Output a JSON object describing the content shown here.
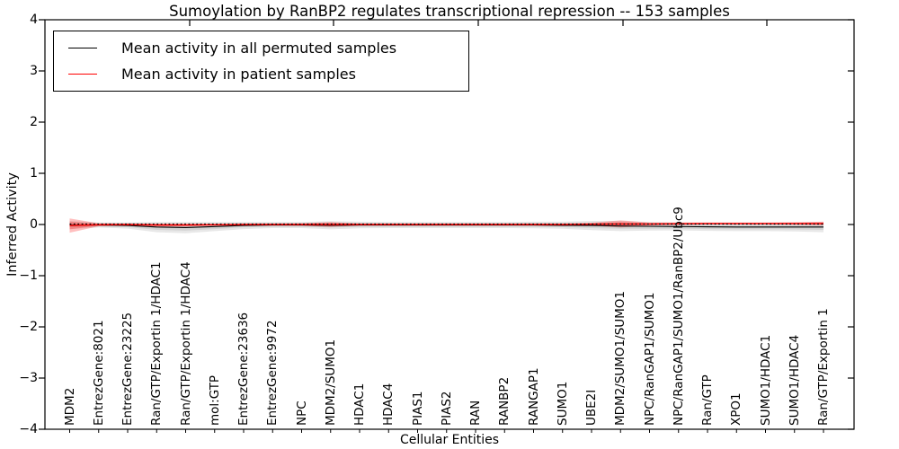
{
  "title": "Sumoylation by RanBP2 regulates transcriptional repression -- 153 samples",
  "legend": {
    "entries": [
      {
        "label": "Mean activity in all permuted samples",
        "color": "#000000"
      },
      {
        "label": "Mean activity in patient samples",
        "color": "#ff0000"
      }
    ]
  },
  "axes": {
    "xlabel": "Cellular Entities",
    "ylabel": "Inferred Activity",
    "ytick_labels": [
      "4",
      "3",
      "2",
      "1",
      "0",
      "−1",
      "−2",
      "−3",
      "−4"
    ]
  },
  "chart_data": {
    "type": "line",
    "title": "Sumoylation by RanBP2 regulates transcriptional repression -- 153 samples",
    "xlabel": "Cellular Entities",
    "ylabel": "Inferred Activity",
    "ylim": [
      -4,
      4
    ],
    "yticks": [
      4,
      3,
      2,
      1,
      0,
      -1,
      -2,
      -3,
      -4
    ],
    "grid": false,
    "legend_position": "upper left",
    "zero_line": {
      "style": "dotted",
      "color": "#000000",
      "y": 0
    },
    "categories": [
      "MDM2",
      "EntrezGene:8021",
      "EntrezGene:23225",
      "Ran/GTP/Exportin 1/HDAC1",
      "Ran/GTP/Exportin 1/HDAC4",
      "mol:GTP",
      "EntrezGene:23636",
      "EntrezGene:9972",
      "NPC",
      "MDM2/SUMO1",
      "HDAC1",
      "HDAC4",
      "PIAS1",
      "PIAS2",
      "RAN",
      "RANBP2",
      "RANGAP1",
      "SUMO1",
      "UBE2I",
      "MDM2/SUMO1/SUMO1",
      "NPC/RanGAP1/SUMO1",
      "NPC/RanGAP1/SUMO1/RanBP2/Ubc9",
      "Ran/GTP",
      "XPO1",
      "SUMO1/HDAC1",
      "SUMO1/HDAC4",
      "Ran/GTP/Exportin 1"
    ],
    "series": [
      {
        "name": "Mean activity in all permuted samples",
        "color": "#000000",
        "values": [
          -0.01,
          -0.01,
          -0.02,
          -0.05,
          -0.06,
          -0.04,
          -0.02,
          -0.01,
          -0.01,
          -0.015,
          -0.01,
          -0.01,
          -0.01,
          -0.01,
          -0.01,
          -0.01,
          -0.01,
          -0.015,
          -0.02,
          -0.03,
          -0.035,
          -0.04,
          -0.045,
          -0.05,
          -0.05,
          -0.05,
          -0.05
        ]
      },
      {
        "name": "Mean activity in patient samples",
        "color": "#ff0000",
        "values": [
          -0.02,
          -0.005,
          0,
          -0.01,
          -0.01,
          -0.005,
          0,
          0,
          0,
          0,
          0,
          0,
          0,
          0,
          0,
          0,
          0,
          0,
          0.005,
          0.01,
          0.01,
          0.015,
          0.02,
          0.02,
          0.02,
          0.02,
          0.02
        ]
      }
    ],
    "bands": [
      {
        "name": "permuted-samples-spread",
        "color": "#000000",
        "opacity": 0.09,
        "center_series": 0,
        "half_widths": [
          0.08,
          0.05,
          0.06,
          0.1,
          0.11,
          0.09,
          0.07,
          0.06,
          0.06,
          0.08,
          0.065,
          0.06,
          0.06,
          0.06,
          0.06,
          0.06,
          0.065,
          0.07,
          0.09,
          0.1,
          0.085,
          0.075,
          0.08,
          0.08,
          0.08,
          0.085,
          0.1
        ]
      },
      {
        "name": "patient-samples-spread",
        "color": "#ff0000",
        "opacity": 0.25,
        "center_series": 1,
        "half_widths": [
          0.14,
          0.03,
          0.02,
          0.03,
          0.03,
          0.02,
          0.02,
          0.02,
          0.025,
          0.05,
          0.02,
          0.02,
          0.02,
          0.02,
          0.02,
          0.02,
          0.02,
          0.02,
          0.03,
          0.07,
          0.03,
          0.025,
          0.02,
          0.02,
          0.02,
          0.025,
          0.035
        ]
      }
    ]
  }
}
